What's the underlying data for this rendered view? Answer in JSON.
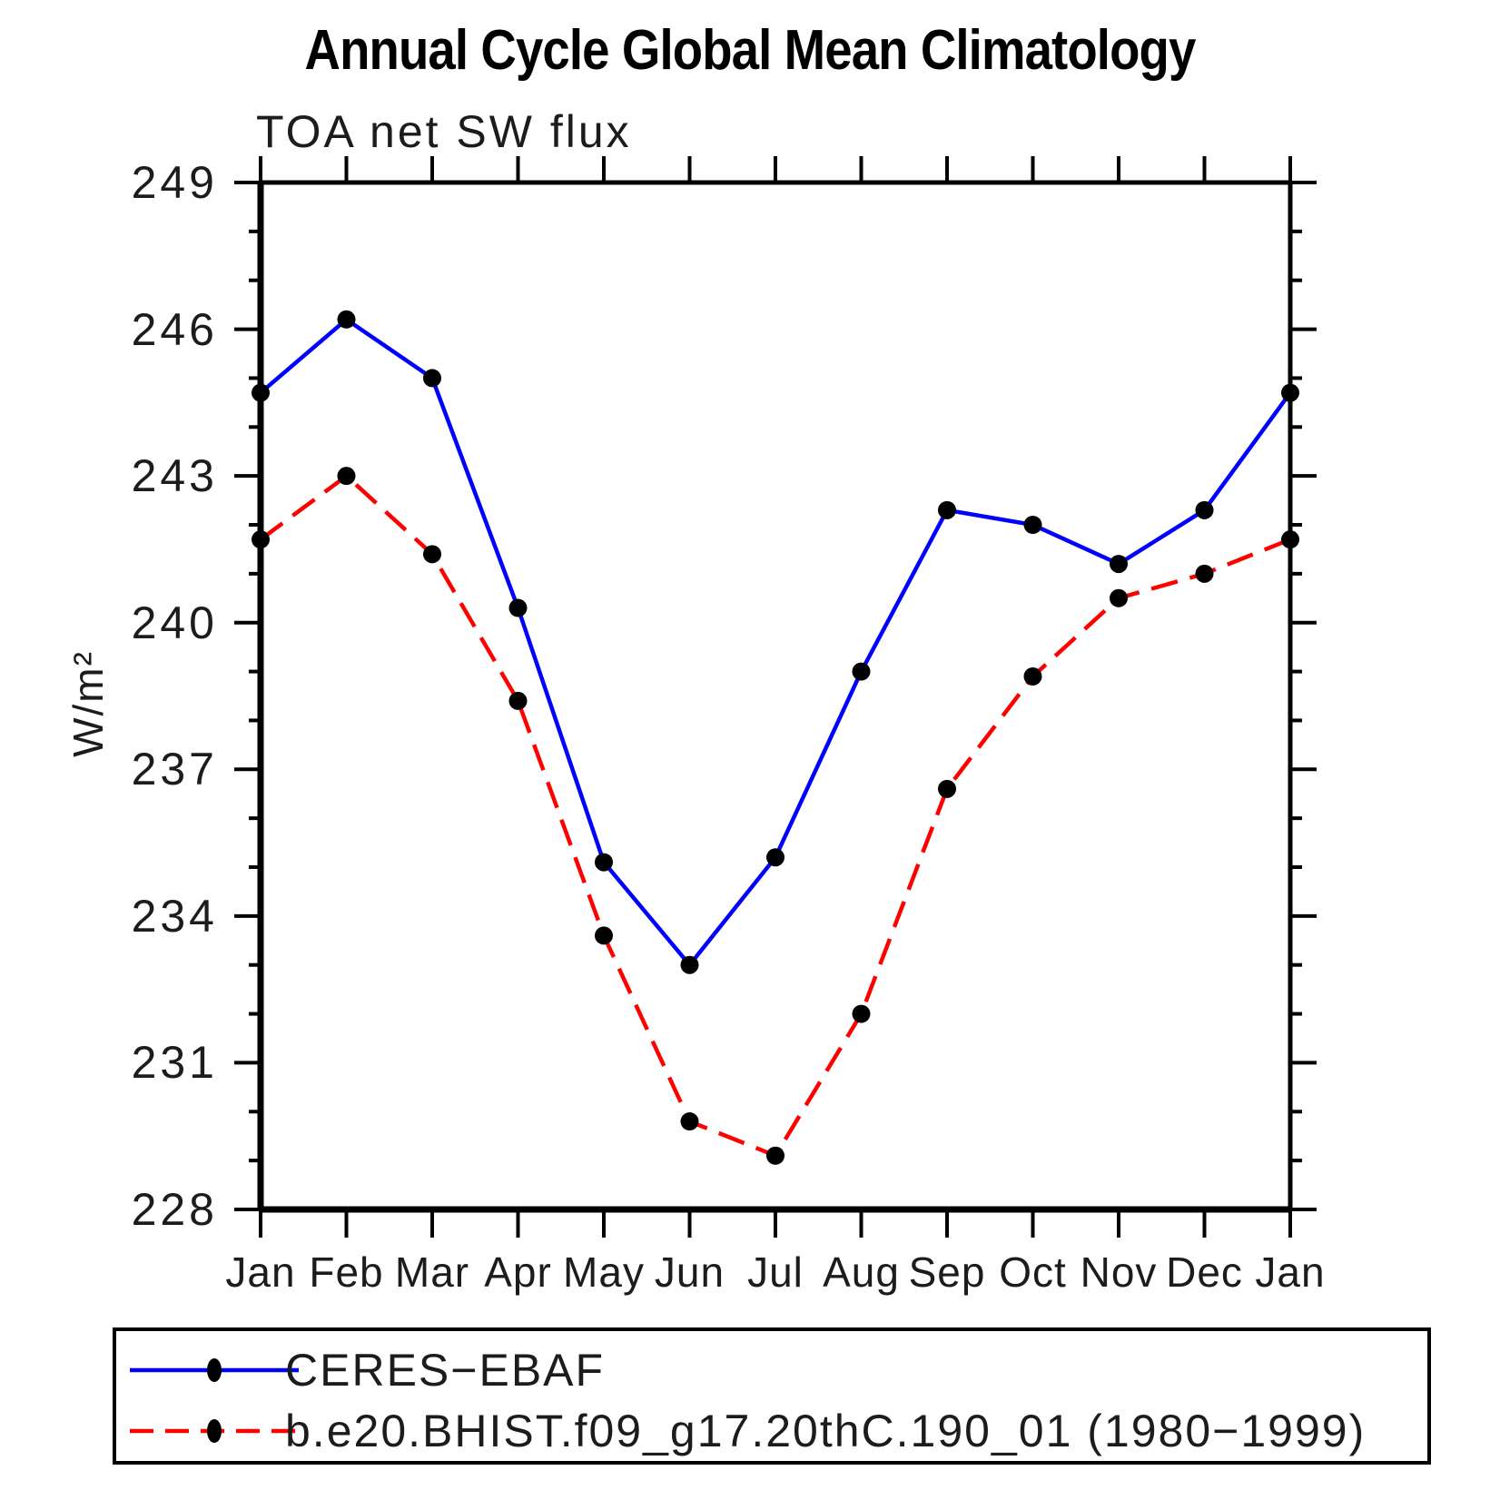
{
  "chart_data": {
    "type": "line",
    "title": "Annual Cycle Global Mean Climatology",
    "subtitle": "TOA net SW flux",
    "ylabel": "W/m²",
    "xlabel": "",
    "x_categories": [
      "Jan",
      "Feb",
      "Mar",
      "Apr",
      "May",
      "Jun",
      "Jul",
      "Aug",
      "Sep",
      "Oct",
      "Nov",
      "Dec",
      "Jan"
    ],
    "ylim": [
      228,
      249
    ],
    "ytick_major_step": 3,
    "ytick_minor_step": 1,
    "ytick_major_values": [
      228,
      231,
      234,
      237,
      240,
      243,
      246,
      249
    ],
    "grid": false,
    "frame": "box-with-outward-ticks",
    "legend_position": "bottom-left-box",
    "marker": "filled-circle",
    "marker_color": "#000000",
    "series": [
      {
        "name": "CERES−EBAF",
        "line_color": "#0000ff",
        "line_style": "solid",
        "values": [
          244.7,
          246.2,
          245.0,
          240.3,
          235.1,
          233.0,
          235.2,
          239.0,
          242.3,
          242.0,
          241.2,
          242.3,
          244.7
        ]
      },
      {
        "name": "b.e20.BHIST.f09_g17.20thC.190_01 (1980−1999)",
        "line_color": "#ff0000",
        "line_style": "dashed",
        "values": [
          241.7,
          243.0,
          241.4,
          238.4,
          233.6,
          229.8,
          229.1,
          232.0,
          236.6,
          238.9,
          240.5,
          241.0,
          241.7
        ]
      }
    ]
  }
}
